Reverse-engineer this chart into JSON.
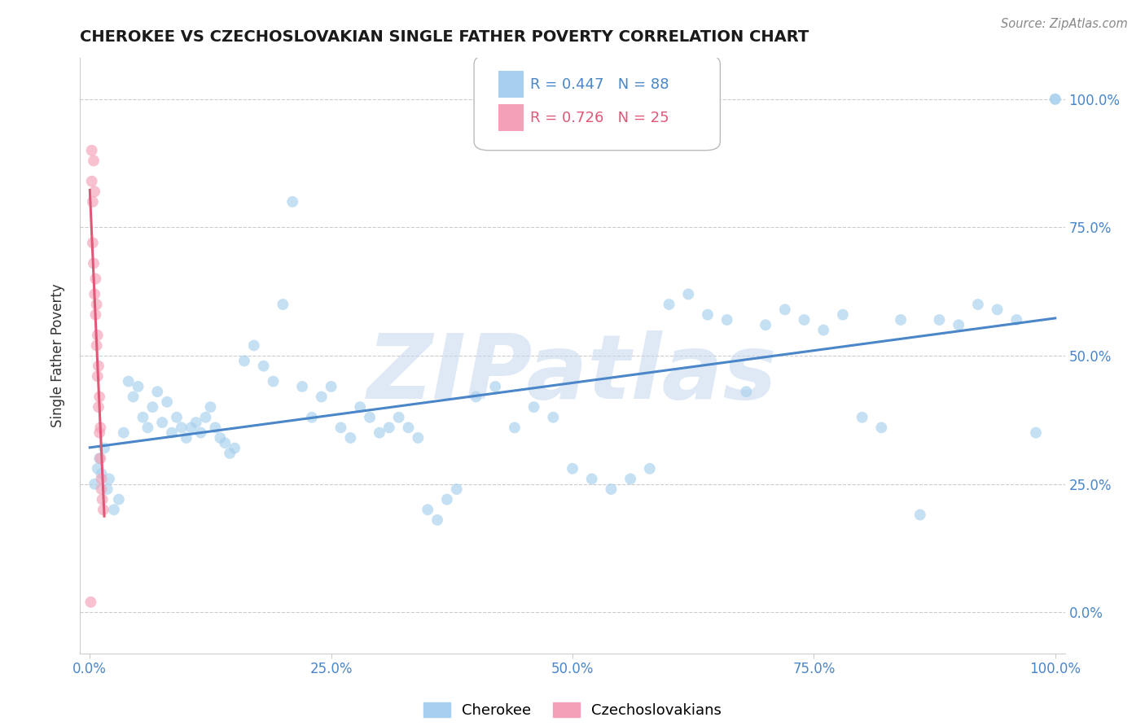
{
  "title": "CHEROKEE VS CZECHOSLOVAKIAN SINGLE FATHER POVERTY CORRELATION CHART",
  "source": "Source: ZipAtlas.com",
  "ylabel": "Single Father Poverty",
  "watermark": "ZIPatlas",
  "cherokee_color": "#A8D0EE",
  "czech_color": "#F4A0B8",
  "cherokee_line_color": "#4A86C8",
  "czech_line_color": "#E05878",
  "background_color": "#FFFFFF",
  "legend_R1": "R = 0.447",
  "legend_N1": "N = 88",
  "legend_R2": "R = 0.726",
  "legend_N2": "N = 25",
  "cherokee_x": [
    0.005,
    0.008,
    0.01,
    0.012,
    0.015,
    0.018,
    0.02,
    0.025,
    0.03,
    0.035,
    0.04,
    0.045,
    0.05,
    0.055,
    0.06,
    0.065,
    0.07,
    0.075,
    0.08,
    0.085,
    0.09,
    0.095,
    0.1,
    0.105,
    0.11,
    0.115,
    0.12,
    0.125,
    0.13,
    0.135,
    0.14,
    0.145,
    0.15,
    0.16,
    0.17,
    0.18,
    0.19,
    0.2,
    0.21,
    0.22,
    0.23,
    0.24,
    0.25,
    0.26,
    0.27,
    0.28,
    0.29,
    0.3,
    0.31,
    0.32,
    0.33,
    0.34,
    0.35,
    0.36,
    0.37,
    0.38,
    0.4,
    0.42,
    0.44,
    0.46,
    0.48,
    0.5,
    0.52,
    0.54,
    0.56,
    0.58,
    0.6,
    0.62,
    0.64,
    0.66,
    0.68,
    0.7,
    0.72,
    0.74,
    0.76,
    0.78,
    0.8,
    0.82,
    0.84,
    0.86,
    0.88,
    0.9,
    0.92,
    0.94,
    0.96,
    0.98,
    1.0,
    1.0
  ],
  "cherokee_y": [
    0.25,
    0.28,
    0.3,
    0.27,
    0.32,
    0.24,
    0.26,
    0.2,
    0.22,
    0.35,
    0.45,
    0.42,
    0.44,
    0.38,
    0.36,
    0.4,
    0.43,
    0.37,
    0.41,
    0.35,
    0.38,
    0.36,
    0.34,
    0.36,
    0.37,
    0.35,
    0.38,
    0.4,
    0.36,
    0.34,
    0.33,
    0.31,
    0.32,
    0.49,
    0.52,
    0.48,
    0.45,
    0.6,
    0.8,
    0.44,
    0.38,
    0.42,
    0.44,
    0.36,
    0.34,
    0.4,
    0.38,
    0.35,
    0.36,
    0.38,
    0.36,
    0.34,
    0.2,
    0.18,
    0.22,
    0.24,
    0.42,
    0.44,
    0.36,
    0.4,
    0.38,
    0.28,
    0.26,
    0.24,
    0.26,
    0.28,
    0.6,
    0.62,
    0.58,
    0.57,
    0.43,
    0.56,
    0.59,
    0.57,
    0.55,
    0.58,
    0.38,
    0.36,
    0.57,
    0.19,
    0.57,
    0.56,
    0.6,
    0.59,
    0.57,
    0.35,
    1.0,
    1.0
  ],
  "czech_x": [
    0.001,
    0.002,
    0.002,
    0.003,
    0.003,
    0.004,
    0.004,
    0.005,
    0.005,
    0.006,
    0.006,
    0.007,
    0.007,
    0.008,
    0.008,
    0.009,
    0.009,
    0.01,
    0.01,
    0.011,
    0.011,
    0.012,
    0.012,
    0.013,
    0.014
  ],
  "czech_y": [
    0.02,
    0.9,
    0.84,
    0.8,
    0.72,
    0.88,
    0.68,
    0.82,
    0.62,
    0.65,
    0.58,
    0.6,
    0.52,
    0.54,
    0.46,
    0.48,
    0.4,
    0.42,
    0.35,
    0.36,
    0.3,
    0.26,
    0.24,
    0.22,
    0.2
  ],
  "xlim": [
    -0.01,
    1.01
  ],
  "ylim": [
    -0.08,
    1.08
  ],
  "xticks": [
    0.0,
    0.25,
    0.5,
    0.75,
    1.0
  ],
  "yticks": [
    0.0,
    0.25,
    0.5,
    0.75,
    1.0
  ],
  "xtick_labels": [
    "0.0%",
    "25.0%",
    "50.0%",
    "75.0%",
    "100.0%"
  ],
  "ytick_labels": [
    "0.0%",
    "25.0%",
    "50.0%",
    "75.0%",
    "100.0%"
  ],
  "marker_size": 100,
  "marker_alpha": 0.65,
  "line_width": 2.2
}
